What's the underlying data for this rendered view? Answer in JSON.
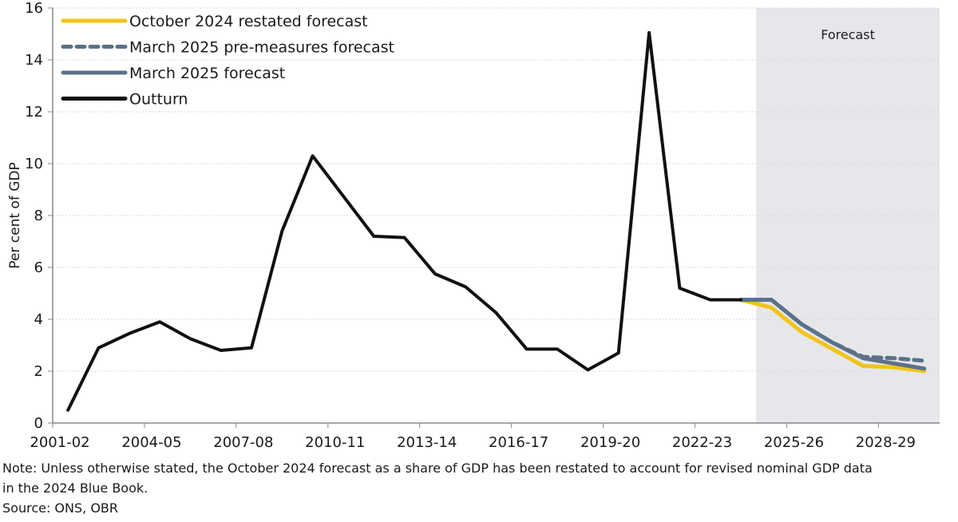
{
  "chart_data": {
    "type": "line",
    "title": "",
    "xlabel": "",
    "ylabel": "Per cent of GDP",
    "ylim": [
      0,
      16
    ],
    "yticks": [
      "0",
      "2",
      "4",
      "6",
      "8",
      "10",
      "12",
      "14",
      "16"
    ],
    "grid": true,
    "legend_position": "top-left",
    "categories": [
      "2001-02",
      "2002-03",
      "2003-04",
      "2004-05",
      "2005-06",
      "2006-07",
      "2007-08",
      "2008-09",
      "2009-10",
      "2010-11",
      "2011-12",
      "2012-13",
      "2013-14",
      "2014-15",
      "2015-16",
      "2016-17",
      "2017-18",
      "2018-19",
      "2019-20",
      "2020-21",
      "2021-22",
      "2022-23",
      "2023-24",
      "2024-25",
      "2025-26",
      "2026-27",
      "2027-28",
      "2028-29",
      "2029-30"
    ],
    "xtick_labels": [
      "2001-02",
      "2004-05",
      "2007-08",
      "2010-11",
      "2013-14",
      "2016-17",
      "2019-20",
      "2022-23",
      "2025-26",
      "2028-29"
    ],
    "forecast_region": {
      "start": "2024-25",
      "end": "2029-30",
      "label": "Forecast",
      "color": "#e6e7eb"
    },
    "series": [
      {
        "name": "October 2024 restated forecast",
        "color": "#f0c419",
        "style": "solid",
        "start": "2023-24",
        "values": [
          4.75,
          4.45,
          3.5,
          2.85,
          2.2,
          2.15,
          2.0
        ]
      },
      {
        "name": "March 2025 pre-measures forecast",
        "color": "#5b7189",
        "style": "dashed",
        "start": "2023-24",
        "values": [
          4.75,
          4.75,
          3.8,
          3.1,
          2.55,
          2.5,
          2.4
        ]
      },
      {
        "name": "March 2025 forecast",
        "color": "#5b7189",
        "style": "solid",
        "start": "2023-24",
        "values": [
          4.75,
          4.75,
          3.8,
          3.1,
          2.5,
          2.3,
          2.1
        ]
      },
      {
        "name": "Outturn",
        "color": "#111111",
        "style": "solid",
        "start": "2001-02",
        "values": [
          0.5,
          2.9,
          3.45,
          3.9,
          3.25,
          2.8,
          2.9,
          7.4,
          10.3,
          8.75,
          7.2,
          7.15,
          5.75,
          5.25,
          4.25,
          2.85,
          2.85,
          2.05,
          2.7,
          15.05,
          5.2,
          4.75,
          4.75
        ]
      }
    ]
  },
  "notes": {
    "note_line1": "Note: Unless otherwise stated, the October 2024 forecast as a share of GDP has been restated to account for revised nominal GDP data",
    "note_line2": "in the 2024 Blue Book.",
    "source": "Source: ONS, OBR"
  }
}
